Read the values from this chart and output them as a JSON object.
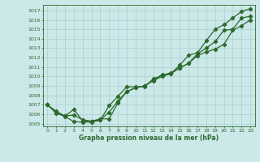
{
  "xlabel": "Graphe pression niveau de la mer (hPa)",
  "x": [
    0,
    1,
    2,
    3,
    4,
    5,
    6,
    7,
    8,
    9,
    10,
    11,
    12,
    13,
    14,
    15,
    16,
    17,
    18,
    19,
    20,
    21,
    22,
    23
  ],
  "line1": [
    1007.0,
    1006.3,
    1005.8,
    1006.5,
    1005.3,
    1005.25,
    1005.5,
    1005.5,
    1007.2,
    1008.4,
    1008.8,
    1009.0,
    1009.6,
    1010.2,
    1010.3,
    1011.2,
    1012.25,
    1012.5,
    1013.8,
    1015.0,
    1015.5,
    1016.2,
    1016.9,
    1017.2
  ],
  "line2": [
    1007.0,
    1006.2,
    1005.8,
    1005.9,
    1005.4,
    1005.25,
    1005.4,
    1006.2,
    1007.4,
    1008.4,
    1008.8,
    1009.0,
    1009.55,
    1010.0,
    1010.3,
    1010.9,
    1011.4,
    1012.4,
    1013.0,
    1013.7,
    1014.9,
    1015.0,
    1016.2,
    1016.4
  ],
  "line3": [
    1007.0,
    1006.1,
    1005.75,
    1005.2,
    1005.15,
    1005.15,
    1005.35,
    1006.9,
    1007.9,
    1008.9,
    1008.9,
    1008.9,
    1009.75,
    1010.1,
    1010.4,
    1010.9,
    1011.4,
    1012.2,
    1012.6,
    1012.9,
    1013.4,
    1014.9,
    1015.4,
    1016.0
  ],
  "line_color": "#2d6a2d",
  "background_color": "#cce8e8",
  "grid_color": "#a8d0d0",
  "text_color": "#2d6a2d",
  "ylim": [
    1004.7,
    1017.6
  ],
  "yticks": [
    1005,
    1006,
    1007,
    1008,
    1009,
    1010,
    1011,
    1012,
    1013,
    1014,
    1015,
    1016,
    1017
  ],
  "xlim": [
    -0.5,
    23.5
  ],
  "marker": "D",
  "markersize": 2.2,
  "linewidth": 0.9
}
